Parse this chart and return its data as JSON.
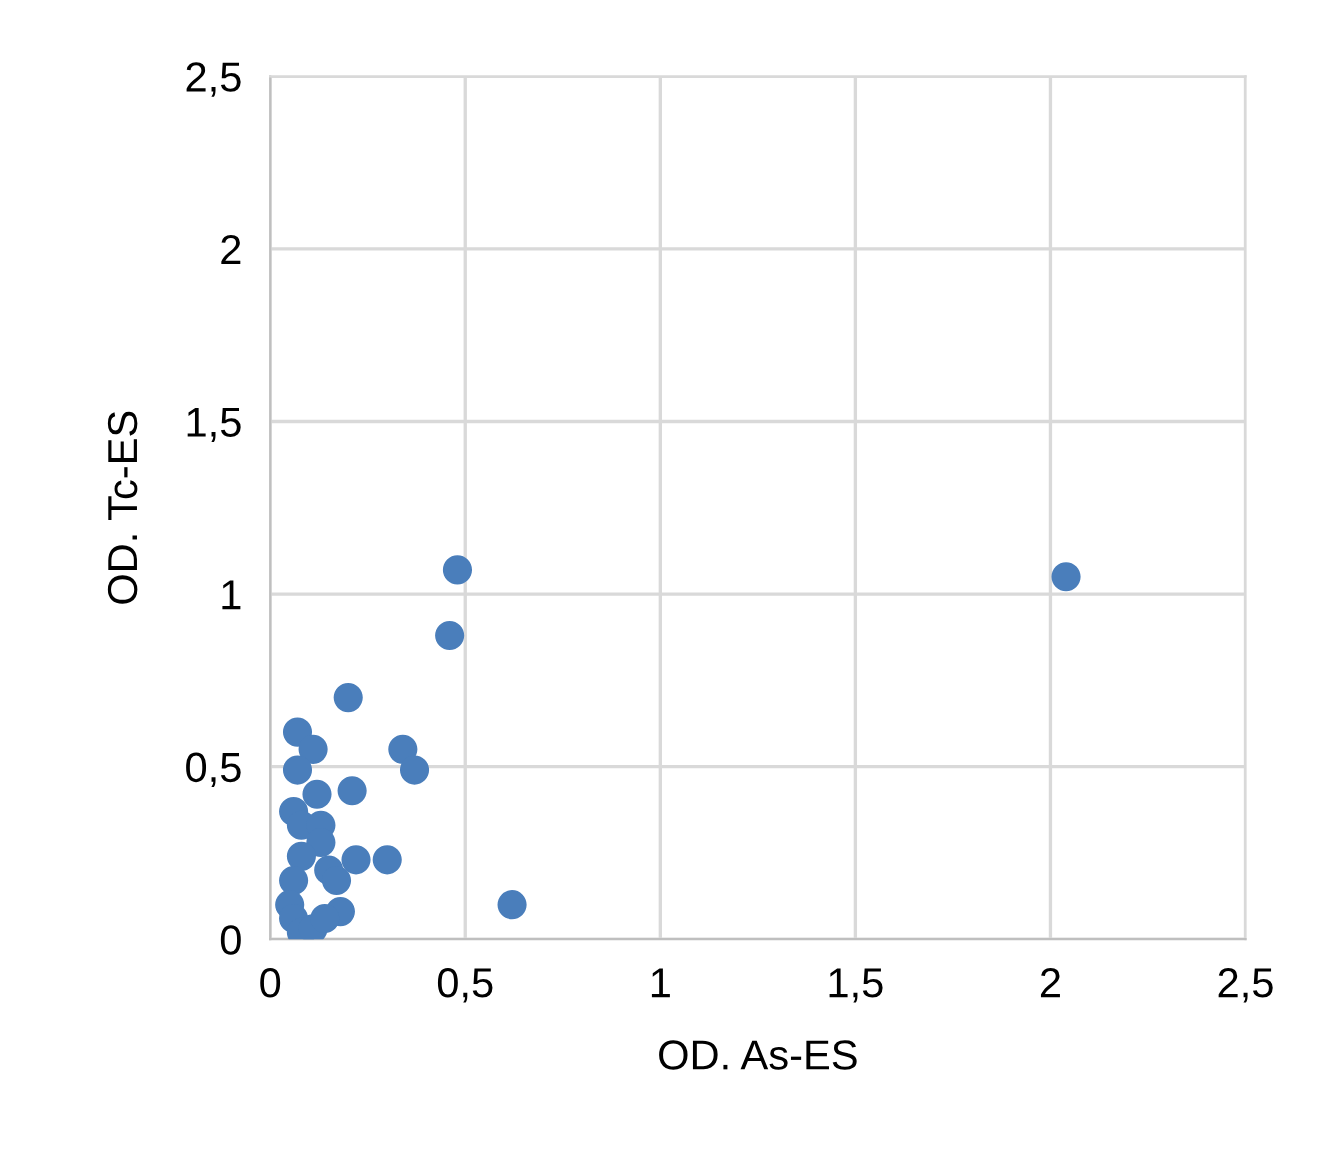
{
  "chart_data": {
    "type": "scatter",
    "xlabel": "OD. As-ES",
    "ylabel": "OD. Tc-ES",
    "xlim": [
      0,
      2.5
    ],
    "ylim": [
      0,
      2.5
    ],
    "xticks": [
      0,
      {
        "value": 0.5,
        "label": "0,5"
      },
      1,
      {
        "value": 1.5,
        "label": "1,5"
      },
      2,
      {
        "value": 2.5,
        "label": "2,5"
      }
    ],
    "yticks": [
      0,
      {
        "value": 0.5,
        "label": "0,5"
      },
      1,
      {
        "value": 1.5,
        "label": "1,5"
      },
      2,
      {
        "value": 2.5,
        "label": "2,5"
      }
    ],
    "grid": true,
    "marker": "circle",
    "series": [
      {
        "color": "#4a7ebb",
        "x": [
          0.48,
          0.46,
          2.04,
          0.2,
          0.07,
          0.11,
          0.34,
          0.37,
          0.07,
          0.21,
          0.12,
          0.06,
          0.08,
          0.13,
          0.13,
          0.08,
          0.3,
          0.22,
          0.62,
          0.18,
          0.15,
          0.17,
          0.06,
          0.05,
          0.06,
          0.08,
          0.11,
          0.14
        ],
        "values": [
          1.07,
          0.88,
          1.05,
          0.7,
          0.6,
          0.55,
          0.55,
          0.49,
          0.49,
          0.43,
          0.42,
          0.37,
          0.33,
          0.33,
          0.28,
          0.24,
          0.23,
          0.23,
          0.1,
          0.08,
          0.2,
          0.17,
          0.17,
          0.1,
          0.06,
          0.02,
          0.03,
          0.06
        ]
      }
    ]
  }
}
